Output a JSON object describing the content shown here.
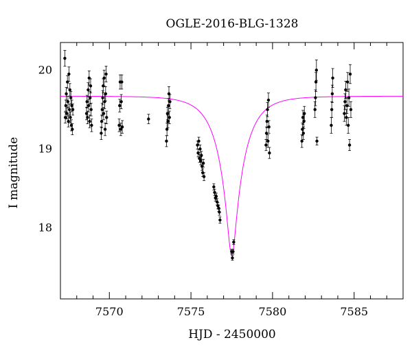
{
  "chart_data": {
    "type": "scatter",
    "title": "OGLE-2016-BLG-1328",
    "xlabel": "HJD - 2450000",
    "ylabel": "I magnitude",
    "xlim": [
      7567,
      7588
    ],
    "ylim": [
      20.35,
      17.1
    ],
    "y_inverted": true,
    "xticks": [
      7570,
      7575,
      7580,
      7585
    ],
    "yticks": [
      18,
      19,
      20
    ],
    "grid": false,
    "model_color": "#ff00ff",
    "point_color": "#000000",
    "model": {
      "name": "",
      "peak_time": 7577.5,
      "peak_mag": 17.65,
      "baseline_mag": 19.66,
      "tE": 1.55
    },
    "series": [
      {
        "name": "",
        "points": [
          {
            "x": 7567.3,
            "y": 19.4,
            "e": 0.07
          },
          {
            "x": 7567.33,
            "y": 19.55,
            "e": 0.07
          },
          {
            "x": 7567.36,
            "y": 19.7,
            "e": 0.08
          },
          {
            "x": 7567.4,
            "y": 19.45,
            "e": 0.07
          },
          {
            "x": 7567.43,
            "y": 19.85,
            "e": 0.08
          },
          {
            "x": 7567.46,
            "y": 19.6,
            "e": 0.07
          },
          {
            "x": 7567.49,
            "y": 19.35,
            "e": 0.07
          },
          {
            "x": 7567.52,
            "y": 19.95,
            "e": 0.09
          },
          {
            "x": 7567.55,
            "y": 19.5,
            "e": 0.07
          },
          {
            "x": 7567.58,
            "y": 19.75,
            "e": 0.08
          },
          {
            "x": 7567.61,
            "y": 19.4,
            "e": 0.07
          },
          {
            "x": 7567.64,
            "y": 19.65,
            "e": 0.08
          },
          {
            "x": 7567.67,
            "y": 19.3,
            "e": 0.07
          },
          {
            "x": 7567.7,
            "y": 19.55,
            "e": 0.07
          },
          {
            "x": 7567.73,
            "y": 19.25,
            "e": 0.07
          },
          {
            "x": 7567.27,
            "y": 20.15,
            "e": 0.1
          },
          {
            "x": 7567.76,
            "y": 19.5,
            "e": 0.07
          },
          {
            "x": 7568.6,
            "y": 19.45,
            "e": 0.08
          },
          {
            "x": 7568.63,
            "y": 19.6,
            "e": 0.08
          },
          {
            "x": 7568.66,
            "y": 19.4,
            "e": 0.08
          },
          {
            "x": 7568.7,
            "y": 19.75,
            "e": 0.09
          },
          {
            "x": 7568.73,
            "y": 19.55,
            "e": 0.08
          },
          {
            "x": 7568.76,
            "y": 19.9,
            "e": 0.09
          },
          {
            "x": 7568.79,
            "y": 19.35,
            "e": 0.08
          },
          {
            "x": 7568.82,
            "y": 19.65,
            "e": 0.08
          },
          {
            "x": 7568.85,
            "y": 19.8,
            "e": 0.09
          },
          {
            "x": 7568.88,
            "y": 19.5,
            "e": 0.08
          },
          {
            "x": 7568.91,
            "y": 19.3,
            "e": 0.08
          },
          {
            "x": 7569.5,
            "y": 19.2,
            "e": 0.08
          },
          {
            "x": 7569.53,
            "y": 19.35,
            "e": 0.08
          },
          {
            "x": 7569.56,
            "y": 19.5,
            "e": 0.08
          },
          {
            "x": 7569.59,
            "y": 19.65,
            "e": 0.09
          },
          {
            "x": 7569.62,
            "y": 19.8,
            "e": 0.09
          },
          {
            "x": 7569.65,
            "y": 19.45,
            "e": 0.08
          },
          {
            "x": 7569.68,
            "y": 19.9,
            "e": 0.1
          },
          {
            "x": 7569.71,
            "y": 19.6,
            "e": 0.09
          },
          {
            "x": 7569.74,
            "y": 19.25,
            "e": 0.08
          },
          {
            "x": 7569.77,
            "y": 19.7,
            "e": 0.09
          },
          {
            "x": 7569.8,
            "y": 19.95,
            "e": 0.1
          },
          {
            "x": 7569.83,
            "y": 19.4,
            "e": 0.08
          },
          {
            "x": 7570.6,
            "y": 19.3,
            "e": 0.08
          },
          {
            "x": 7570.63,
            "y": 19.55,
            "e": 0.08
          },
          {
            "x": 7570.66,
            "y": 19.85,
            "e": 0.09
          },
          {
            "x": 7570.7,
            "y": 19.25,
            "e": 0.08
          },
          {
            "x": 7570.73,
            "y": 19.6,
            "e": 0.09
          },
          {
            "x": 7570.76,
            "y": 19.85,
            "e": 0.09
          },
          {
            "x": 7570.79,
            "y": 19.28,
            "e": 0.08
          },
          {
            "x": 7572.4,
            "y": 19.38,
            "e": 0.06
          },
          {
            "x": 7573.5,
            "y": 19.1,
            "e": 0.07
          },
          {
            "x": 7573.53,
            "y": 19.25,
            "e": 0.08
          },
          {
            "x": 7573.56,
            "y": 19.45,
            "e": 0.08
          },
          {
            "x": 7573.59,
            "y": 19.35,
            "e": 0.08
          },
          {
            "x": 7573.62,
            "y": 19.55,
            "e": 0.09
          },
          {
            "x": 7573.65,
            "y": 19.7,
            "e": 0.09
          },
          {
            "x": 7573.68,
            "y": 19.4,
            "e": 0.08
          },
          {
            "x": 7573.71,
            "y": 19.6,
            "e": 0.09
          },
          {
            "x": 7575.4,
            "y": 19.05,
            "e": 0.05
          },
          {
            "x": 7575.44,
            "y": 18.95,
            "e": 0.05
          },
          {
            "x": 7575.48,
            "y": 19.1,
            "e": 0.05
          },
          {
            "x": 7575.52,
            "y": 18.88,
            "e": 0.05
          },
          {
            "x": 7575.56,
            "y": 19.0,
            "e": 0.05
          },
          {
            "x": 7575.6,
            "y": 18.85,
            "e": 0.05
          },
          {
            "x": 7575.64,
            "y": 18.92,
            "e": 0.05
          },
          {
            "x": 7575.68,
            "y": 18.78,
            "e": 0.05
          },
          {
            "x": 7575.72,
            "y": 18.7,
            "e": 0.05
          },
          {
            "x": 7575.76,
            "y": 18.82,
            "e": 0.05
          },
          {
            "x": 7575.8,
            "y": 18.65,
            "e": 0.05
          },
          {
            "x": 7576.4,
            "y": 18.52,
            "e": 0.04
          },
          {
            "x": 7576.45,
            "y": 18.45,
            "e": 0.04
          },
          {
            "x": 7576.5,
            "y": 18.38,
            "e": 0.04
          },
          {
            "x": 7576.55,
            "y": 18.4,
            "e": 0.04
          },
          {
            "x": 7576.6,
            "y": 18.33,
            "e": 0.04
          },
          {
            "x": 7576.65,
            "y": 18.28,
            "e": 0.04
          },
          {
            "x": 7576.7,
            "y": 18.25,
            "e": 0.04
          },
          {
            "x": 7576.74,
            "y": 18.2,
            "e": 0.04
          },
          {
            "x": 7576.78,
            "y": 18.1,
            "e": 0.04
          },
          {
            "x": 7577.5,
            "y": 17.7,
            "e": 0.03
          },
          {
            "x": 7577.54,
            "y": 17.62,
            "e": 0.03
          },
          {
            "x": 7577.58,
            "y": 17.7,
            "e": 0.03
          },
          {
            "x": 7577.62,
            "y": 17.82,
            "e": 0.03
          },
          {
            "x": 7579.6,
            "y": 19.05,
            "e": 0.07
          },
          {
            "x": 7579.63,
            "y": 19.2,
            "e": 0.08
          },
          {
            "x": 7579.66,
            "y": 19.35,
            "e": 0.08
          },
          {
            "x": 7579.69,
            "y": 19.5,
            "e": 0.09
          },
          {
            "x": 7579.72,
            "y": 19.1,
            "e": 0.08
          },
          {
            "x": 7579.75,
            "y": 19.62,
            "e": 0.09
          },
          {
            "x": 7579.78,
            "y": 19.28,
            "e": 0.08
          },
          {
            "x": 7579.81,
            "y": 18.95,
            "e": 0.07
          },
          {
            "x": 7581.8,
            "y": 19.1,
            "e": 0.08
          },
          {
            "x": 7581.83,
            "y": 19.25,
            "e": 0.08
          },
          {
            "x": 7581.86,
            "y": 19.4,
            "e": 0.09
          },
          {
            "x": 7581.89,
            "y": 19.2,
            "e": 0.08
          },
          {
            "x": 7581.92,
            "y": 19.35,
            "e": 0.09
          },
          {
            "x": 7581.95,
            "y": 19.45,
            "e": 0.09
          },
          {
            "x": 7582.6,
            "y": 19.5,
            "e": 0.1
          },
          {
            "x": 7582.63,
            "y": 19.65,
            "e": 0.1
          },
          {
            "x": 7582.66,
            "y": 19.85,
            "e": 0.12
          },
          {
            "x": 7582.69,
            "y": 20.0,
            "e": 0.13
          },
          {
            "x": 7582.72,
            "y": 19.1,
            "e": 0.05
          },
          {
            "x": 7583.6,
            "y": 19.3,
            "e": 0.1
          },
          {
            "x": 7583.63,
            "y": 19.5,
            "e": 0.1
          },
          {
            "x": 7583.66,
            "y": 19.7,
            "e": 0.11
          },
          {
            "x": 7583.69,
            "y": 19.9,
            "e": 0.12
          },
          {
            "x": 7584.4,
            "y": 19.45,
            "e": 0.1
          },
          {
            "x": 7584.44,
            "y": 19.6,
            "e": 0.1
          },
          {
            "x": 7584.48,
            "y": 19.75,
            "e": 0.11
          },
          {
            "x": 7584.52,
            "y": 19.4,
            "e": 0.1
          },
          {
            "x": 7584.56,
            "y": 19.55,
            "e": 0.1
          },
          {
            "x": 7584.6,
            "y": 19.85,
            "e": 0.12
          },
          {
            "x": 7584.64,
            "y": 19.3,
            "e": 0.1
          },
          {
            "x": 7584.68,
            "y": 19.65,
            "e": 0.11
          },
          {
            "x": 7584.72,
            "y": 19.05,
            "e": 0.07
          },
          {
            "x": 7584.76,
            "y": 19.95,
            "e": 0.12
          },
          {
            "x": 7584.8,
            "y": 19.5,
            "e": 0.1
          }
        ]
      }
    ]
  }
}
